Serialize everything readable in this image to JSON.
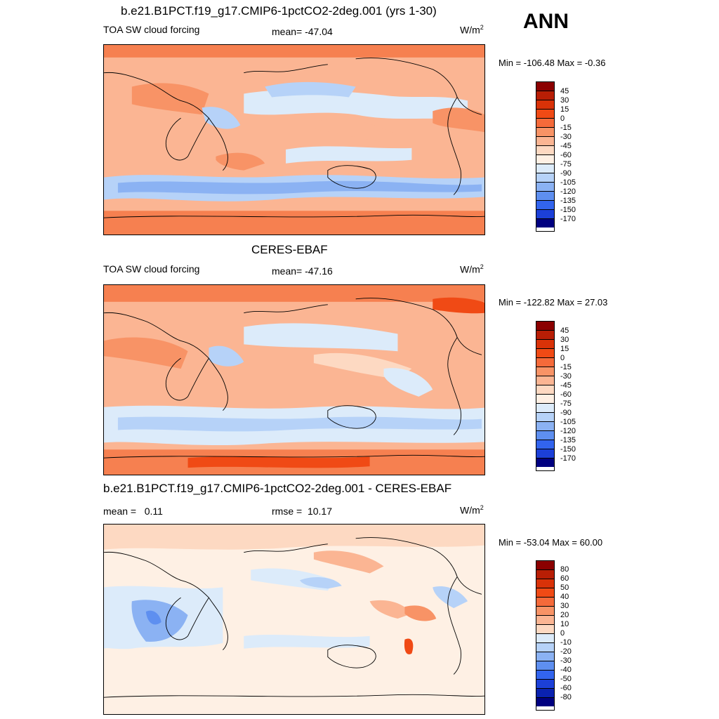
{
  "season": "ANN",
  "panel1": {
    "title": "b.e21.B1PCT.f19_g17.CMIP6-1pctCO2-2deg.001 (yrs 1-30)",
    "var_label": "TOA SW cloud forcing",
    "stat": "mean= -47.04",
    "units_base": "W/m",
    "units_exp": "2",
    "minmax": "Min = -106.48 Max =  -0.36",
    "levels": [
      "45",
      "30",
      "15",
      "0",
      "-15",
      "-30",
      "-45",
      "-60",
      "-75",
      "-90",
      "-105",
      "-120",
      "-135",
      "-150",
      "-170"
    ]
  },
  "panel2": {
    "title": "CERES-EBAF",
    "var_label": "TOA SW cloud forcing",
    "stat": "mean= -47.16",
    "units_base": "W/m",
    "units_exp": "2",
    "minmax": "Min = -122.82 Max =  27.03",
    "levels": [
      "45",
      "30",
      "15",
      "0",
      "-15",
      "-30",
      "-45",
      "-60",
      "-75",
      "-90",
      "-105",
      "-120",
      "-135",
      "-150",
      "-170"
    ]
  },
  "panel3": {
    "title": "b.e21.B1PCT.f19_g17.CMIP6-1pctCO2-2deg.001 - CERES-EBAF",
    "stat_mean": "mean =   0.11",
    "stat_rmse": "rmse =  10.17",
    "units_base": "W/m",
    "units_exp": "2",
    "minmax": "Min = -53.04 Max =  60.00",
    "levels": [
      "80",
      "60",
      "50",
      "40",
      "30",
      "20",
      "10",
      "0",
      "-10",
      "-20",
      "-30",
      "-40",
      "-50",
      "-60",
      "-80"
    ]
  },
  "colors": {
    "colorbar": [
      "#8b0000",
      "#b81e05",
      "#d93208",
      "#f04a15",
      "#f56a3a",
      "#f89366",
      "#fbb593",
      "#fdd9c2",
      "#fef0e4",
      "#dcebfa",
      "#b6d2f8",
      "#8bb2f3",
      "#5e8ff0",
      "#3264ee",
      "#1c40d8",
      "#0a22b0",
      "#000080"
    ],
    "ocean_pos": "#f68050",
    "map_bg1": "#fddcc6",
    "map_bg3": "#fde8da"
  }
}
